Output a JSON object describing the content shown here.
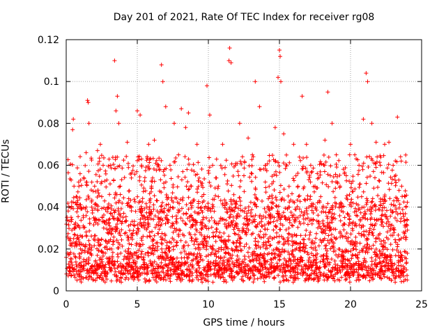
{
  "chart_data": {
    "type": "scatter",
    "title": "Day 201 of 2021, Rate Of TEC Index for receiver rg08",
    "xlabel": "GPS time / hours",
    "ylabel": "ROTI / TECUs",
    "xlim": [
      0,
      25
    ],
    "ylim": [
      0,
      0.12
    ],
    "xticks": [
      "0",
      "5",
      "10",
      "15",
      "20",
      "25"
    ],
    "yticks": [
      "0",
      "0.02",
      "0.04",
      "0.06",
      "0.08",
      "0.1",
      "0.12"
    ],
    "grid": true,
    "marker": "+",
    "color": "#ff0000",
    "series": [
      {
        "x": [
          0.1,
          0.3,
          0.45,
          0.5,
          0.55,
          0.6,
          0.7,
          1.0,
          1.2,
          1.4,
          1.5,
          1.55,
          1.6,
          1.8,
          2.0,
          2.2,
          2.4,
          2.5,
          2.6,
          2.9,
          3.1,
          3.4,
          3.5,
          3.6,
          3.7,
          3.8,
          4.0,
          4.3,
          4.6,
          5.0,
          5.2,
          5.3,
          5.5,
          5.8,
          6.0,
          6.2,
          6.5,
          6.7,
          6.8,
          7.0,
          7.3,
          7.6,
          7.9,
          8.1,
          8.4,
          8.6,
          8.8,
          9.2,
          9.5,
          9.9,
          10.1,
          10.3,
          10.7,
          11.0,
          11.3,
          11.45,
          11.5,
          11.6,
          11.9,
          12.2,
          12.5,
          12.8,
          13.1,
          13.3,
          13.6,
          14.0,
          14.3,
          14.7,
          14.9,
          15.0,
          15.05,
          15.1,
          15.3,
          15.7,
          16.0,
          16.3,
          16.6,
          16.9,
          17.2,
          17.5,
          17.9,
          18.2,
          18.4,
          18.7,
          19.0,
          19.4,
          19.7,
          20.0,
          20.3,
          20.6,
          20.9,
          21.1,
          21.2,
          21.5,
          21.8,
          22.1,
          22.4,
          22.7,
          23.0,
          23.3,
          23.6,
          23.9
        ],
        "y": [
          0.018,
          0.025,
          0.077,
          0.082,
          0.05,
          0.03,
          0.045,
          0.02,
          0.035,
          0.066,
          0.091,
          0.09,
          0.08,
          0.04,
          0.05,
          0.067,
          0.07,
          0.045,
          0.06,
          0.04,
          0.06,
          0.11,
          0.086,
          0.093,
          0.08,
          0.05,
          0.035,
          0.071,
          0.04,
          0.086,
          0.084,
          0.06,
          0.03,
          0.07,
          0.05,
          0.072,
          0.06,
          0.108,
          0.1,
          0.088,
          0.06,
          0.08,
          0.065,
          0.087,
          0.078,
          0.085,
          0.05,
          0.07,
          0.04,
          0.098,
          0.084,
          0.06,
          0.05,
          0.07,
          0.03,
          0.11,
          0.116,
          0.109,
          0.06,
          0.08,
          0.055,
          0.073,
          0.065,
          0.1,
          0.088,
          0.06,
          0.045,
          0.078,
          0.102,
          0.115,
          0.112,
          0.1,
          0.075,
          0.04,
          0.07,
          0.05,
          0.093,
          0.07,
          0.06,
          0.05,
          0.045,
          0.072,
          0.095,
          0.08,
          0.065,
          0.04,
          0.055,
          0.07,
          0.065,
          0.06,
          0.082,
          0.104,
          0.1,
          0.08,
          0.071,
          0.06,
          0.07,
          0.071,
          0.06,
          0.083,
          0.05,
          0.04
        ]
      }
    ]
  }
}
